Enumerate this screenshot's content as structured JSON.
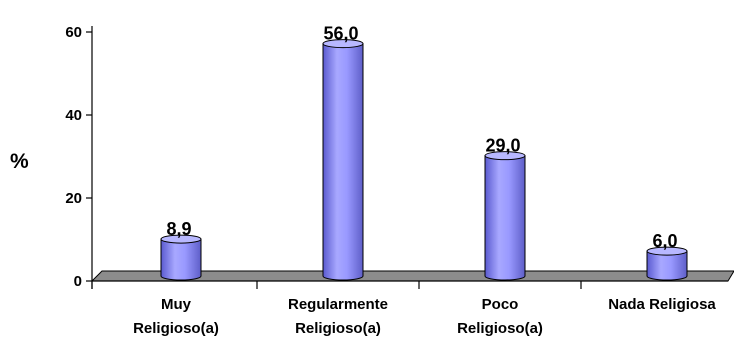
{
  "chart_data": {
    "type": "bar",
    "categories": [
      [
        "Muy",
        "Religioso(a)"
      ],
      [
        "Regularmente",
        "Religioso(a)"
      ],
      [
        "Poco",
        "Religioso(a)"
      ],
      [
        "Nada Religiosa"
      ]
    ],
    "values": [
      8.9,
      56.0,
      29.0,
      6.0
    ],
    "data_labels": [
      "8,9",
      "56,0",
      "29,0",
      "6,0"
    ],
    "title": "",
    "xlabel": "",
    "ylabel": "%",
    "ylim": [
      0,
      60
    ],
    "yticks": [
      0,
      20,
      40,
      60
    ],
    "grid": false,
    "legend": "none",
    "style": "3d-cylinder",
    "colors": {
      "bar_fill": "#9999ff",
      "bar_dark": "#6a6ad9",
      "bar_top": "#b8b8ff",
      "outline": "#000000",
      "floor": "#8c8c8c"
    }
  }
}
